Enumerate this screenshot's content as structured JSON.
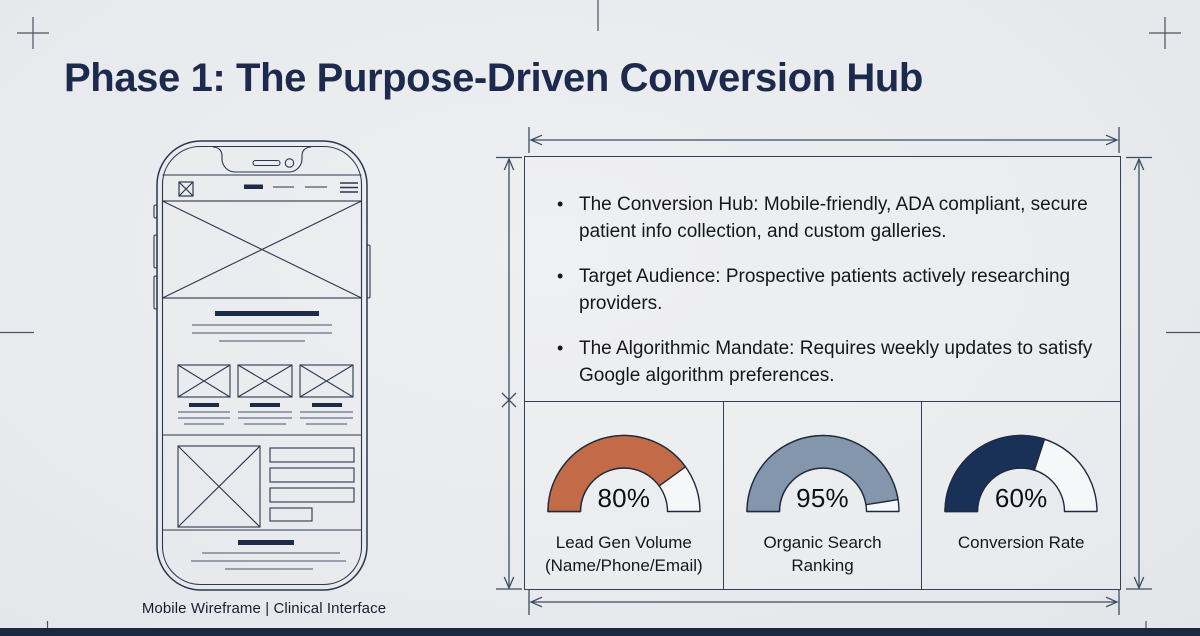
{
  "title": "Phase 1: The Purpose-Driven Conversion Hub",
  "mobile_wireframe": {
    "caption": "Mobile Wireframe | Clinical Interface"
  },
  "info_panel": {
    "bullets": [
      "The Conversion Hub: Mobile-friendly, ADA compliant, secure patient info collection, and custom galleries.",
      "Target Audience: Prospective patients actively researching providers.",
      "The Algorithmic Mandate: Requires weekly updates to satisfy Google algorithm preferences."
    ]
  },
  "chart_data": {
    "type": "gauge",
    "style": "semicircle-donut",
    "range": [
      0,
      100
    ],
    "gauges": [
      {
        "label": "Lead Gen Volume (Name/Phone/Email)",
        "value": 80,
        "display": "80%",
        "color": "#c26b46"
      },
      {
        "label": "Organic Search Ranking",
        "value": 95,
        "display": "95%",
        "color": "#8496ab"
      },
      {
        "label": "Conversion Rate",
        "value": 60,
        "display": "60%",
        "color": "#1a3157"
      }
    ]
  },
  "colors": {
    "background": "#e9ebee",
    "title_ink": "#1c2a4d",
    "panel_border": "#313f58",
    "annotation_line": "#3c4c63",
    "registration_mark": "#4b5360",
    "gauge_track": "#f6f7f8",
    "gauge_outline": "#1f2a40",
    "bottom_bar": "#1b2840"
  }
}
